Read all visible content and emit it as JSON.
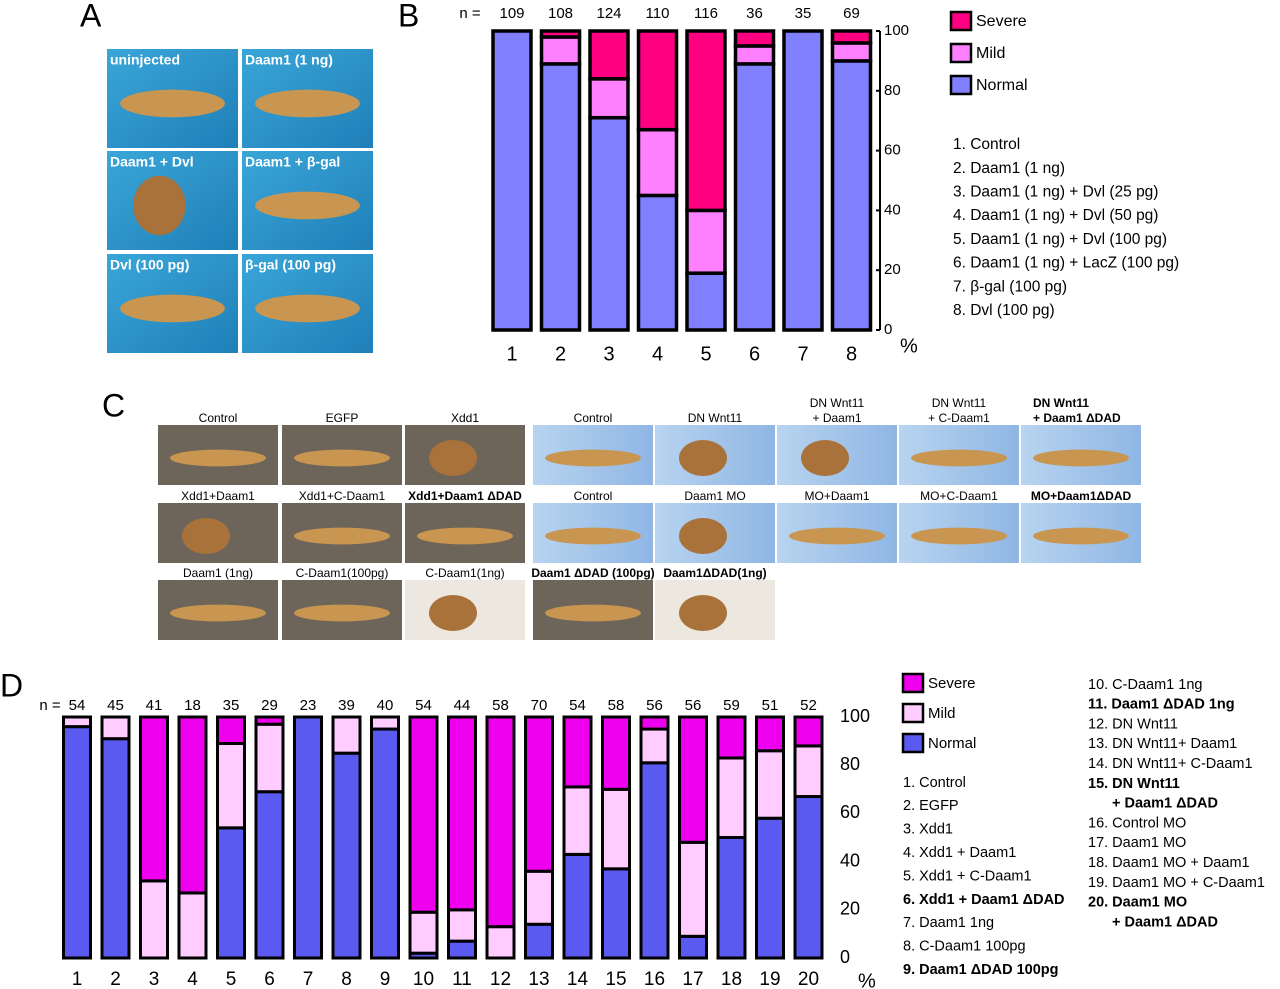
{
  "panel_labels": [
    "A",
    "B",
    "C",
    "D"
  ],
  "panel_a_captions": [
    "uninjected",
    "Daam1 (1 ng)",
    "Daam1 + Dvl",
    "Daam1 + β-gal",
    "Dvl (100 pg)",
    "β-gal (100 pg)"
  ],
  "panel_c_rows": [
    [
      {
        "lines": [
          "Control"
        ]
      },
      {
        "lines": [
          "EGFP"
        ]
      },
      {
        "lines": [
          "Xdd1"
        ]
      },
      {
        "lines": [
          "Control"
        ]
      },
      {
        "lines": [
          "DN Wnt11"
        ]
      },
      {
        "lines": [
          "DN Wnt11",
          "+ Daam1"
        ]
      },
      {
        "lines": [
          "DN Wnt11",
          "+ C-Daam1"
        ]
      },
      {
        "lines": [
          "DN Wnt11",
          "+ Daam1 ΔDAD"
        ],
        "bold": true
      }
    ],
    [
      {
        "lines": [
          "Xdd1+Daam1"
        ]
      },
      {
        "lines": [
          "Xdd1+C-Daam1"
        ]
      },
      {
        "lines": [
          "Xdd1+Daam1 ΔDAD"
        ],
        "bold": true
      },
      {
        "lines": [
          "Control"
        ]
      },
      {
        "lines": [
          "Daam1 MO"
        ]
      },
      {
        "lines": [
          "MO+Daam1"
        ]
      },
      {
        "lines": [
          "MO+C-Daam1"
        ]
      },
      {
        "lines": [
          "MO+Daam1ΔDAD"
        ],
        "bold": true
      }
    ],
    [
      {
        "lines": [
          "Daam1 (1ng)"
        ]
      },
      {
        "lines": [
          "C-Daam1(100pg)"
        ]
      },
      {
        "lines": [
          "C-Daam1(1ng)"
        ]
      },
      {
        "lines": [
          "Daam1 ΔDAD (100pg)"
        ],
        "bold": true
      },
      {
        "lines": [
          "Daam1ΔDAD(1ng)"
        ],
        "bold": true
      }
    ]
  ],
  "chart_data": [
    {
      "type": "bar",
      "stacked": true,
      "n_label": "n =",
      "n": [
        109,
        108,
        124,
        110,
        116,
        36,
        35,
        69
      ],
      "categories": [
        "1",
        "2",
        "3",
        "4",
        "5",
        "6",
        "7",
        "8"
      ],
      "series": [
        {
          "name": "Normal",
          "color": "#8080ff",
          "values": [
            100,
            89,
            71,
            45,
            19,
            89,
            100,
            90
          ]
        },
        {
          "name": "Mild",
          "color": "#ff80ff",
          "values": [
            0,
            9,
            13,
            22,
            21,
            6,
            0,
            6
          ]
        },
        {
          "name": "Severe",
          "color": "#ff0080",
          "values": [
            0,
            2,
            16,
            33,
            60,
            5,
            0,
            4
          ]
        }
      ],
      "ylim": [
        0,
        100
      ],
      "yticks": [
        0,
        20,
        40,
        60,
        80,
        100
      ],
      "y_unit": "%",
      "legend": "right",
      "key": [
        {
          "lines": [
            "1. Control"
          ]
        },
        {
          "lines": [
            "2. Daam1 (1 ng)"
          ]
        },
        {
          "lines": [
            "3. Daam1 (1 ng) + Dvl (25 pg)"
          ]
        },
        {
          "lines": [
            "4. Daam1 (1 ng) + Dvl (50 pg)"
          ]
        },
        {
          "lines": [
            "5. Daam1 (1 ng) + Dvl (100 pg)"
          ]
        },
        {
          "lines": [
            "6. Daam1 (1 ng) + LacZ (100 pg)"
          ]
        },
        {
          "lines": [
            "7. β-gal (100 pg)"
          ]
        },
        {
          "lines": [
            "8. Dvl (100 pg)"
          ]
        }
      ]
    },
    {
      "type": "bar",
      "stacked": true,
      "n_label": "n =",
      "n": [
        54,
        45,
        41,
        18,
        35,
        29,
        23,
        39,
        40,
        54,
        44,
        58,
        70,
        54,
        58,
        56,
        56,
        59,
        51,
        52
      ],
      "categories": [
        "1",
        "2",
        "3",
        "4",
        "5",
        "6",
        "7",
        "8",
        "9",
        "10",
        "11",
        "12",
        "13",
        "14",
        "15",
        "16",
        "17",
        "18",
        "19",
        "20"
      ],
      "series": [
        {
          "name": "Normal",
          "color": "#5a5af0",
          "values": [
            96,
            91,
            0,
            0,
            54,
            69,
            100,
            85,
            95,
            2,
            7,
            0,
            14,
            43,
            37,
            81,
            9,
            50,
            58,
            67
          ]
        },
        {
          "name": "Mild",
          "color": "#ffccff",
          "values": [
            4,
            9,
            32,
            27,
            35,
            28,
            0,
            15,
            5,
            17,
            13,
            13,
            22,
            28,
            33,
            14,
            39,
            33,
            28,
            21
          ]
        },
        {
          "name": "Severe",
          "color": "#ee00ee",
          "values": [
            0,
            0,
            68,
            73,
            11,
            3,
            0,
            0,
            0,
            81,
            80,
            87,
            64,
            29,
            30,
            5,
            52,
            17,
            14,
            12
          ]
        }
      ],
      "ylim": [
        0,
        100
      ],
      "yticks": [
        0,
        20,
        40,
        60,
        80,
        100
      ],
      "y_unit": "%",
      "legend": "right",
      "key": [
        {
          "lines": [
            "1. Control"
          ]
        },
        {
          "lines": [
            "2. EGFP"
          ]
        },
        {
          "lines": [
            "3. Xdd1"
          ]
        },
        {
          "lines": [
            "4. Xdd1 + Daam1"
          ]
        },
        {
          "lines": [
            "5. Xdd1 + C-Daam1"
          ]
        },
        {
          "lines": [
            "6. Xdd1 + Daam1 ΔDAD"
          ],
          "bold": true
        },
        {
          "lines": [
            "7. Daam1 1ng"
          ]
        },
        {
          "lines": [
            "8. C-Daam1 100pg"
          ]
        },
        {
          "lines": [
            "9. Daam1 ΔDAD 100pg"
          ],
          "bold": true
        },
        {
          "lines": [
            "10. C-Daam1 1ng"
          ]
        },
        {
          "lines": [
            "11. Daam1 ΔDAD 1ng"
          ],
          "bold": true
        },
        {
          "lines": [
            "12. DN Wnt11"
          ]
        },
        {
          "lines": [
            "13. DN Wnt11+ Daam1"
          ]
        },
        {
          "lines": [
            "14. DN Wnt11+ C-Daam1"
          ]
        },
        {
          "lines": [
            "15. DN Wnt11",
            "+ Daam1 ΔDAD"
          ],
          "bold": true
        },
        {
          "lines": [
            "16. Control MO"
          ]
        },
        {
          "lines": [
            "17. Daam1 MO"
          ]
        },
        {
          "lines": [
            "18. Daam1 MO + Daam1"
          ]
        },
        {
          "lines": [
            "19. Daam1 MO + C-Daam1"
          ]
        },
        {
          "lines": [
            "20. Daam1 MO",
            "+ Daam1 ΔDAD"
          ],
          "bold": true
        }
      ]
    }
  ]
}
